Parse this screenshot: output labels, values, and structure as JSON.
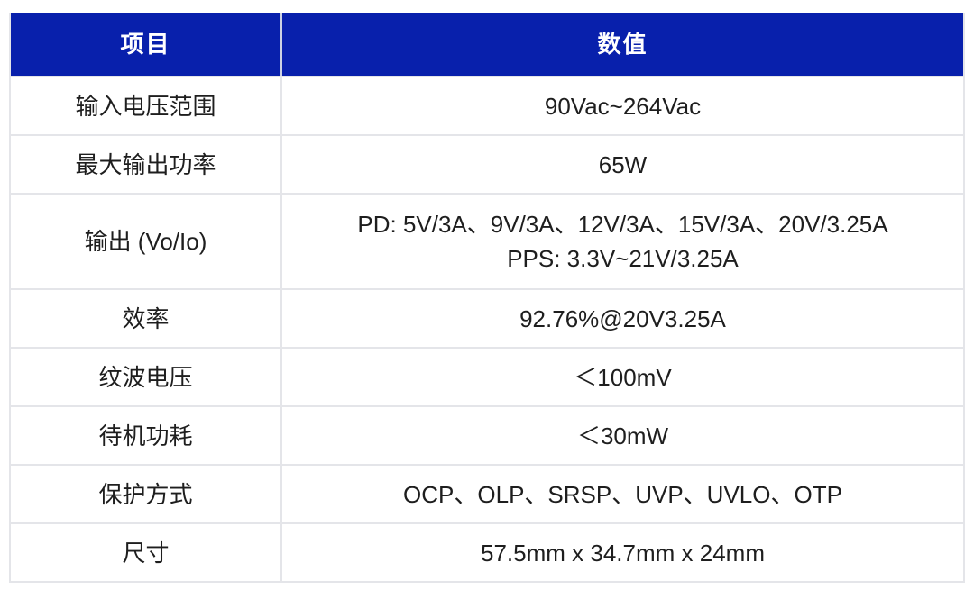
{
  "table": {
    "header": {
      "item_label": "项目",
      "value_label": "数值"
    },
    "rows": [
      {
        "item": "输入电压范围",
        "value": "90Vac~264Vac"
      },
      {
        "item": "最大输出功率",
        "value": "65W"
      },
      {
        "item": "输出 (Vo/Io)",
        "value": "PD: 5V/3A、9V/3A、12V/3A、15V/3A、20V/3.25A\nPPS: 3.3V~21V/3.25A"
      },
      {
        "item": "效率",
        "value": "92.76%@20V3.25A"
      },
      {
        "item": "纹波电压",
        "value": "＜100mV"
      },
      {
        "item": "待机功耗",
        "value": "＜30mW"
      },
      {
        "item": "保护方式",
        "value": "OCP、OLP、SRSP、UVP、UVLO、OTP"
      },
      {
        "item": "尺寸",
        "value": "57.5mm x 34.7mm x 24mm"
      }
    ],
    "colors": {
      "header_bg": "#0820AC",
      "header_text": "#ffffff",
      "body_text": "#1e1e1e",
      "border": "#e4e5e9"
    }
  }
}
